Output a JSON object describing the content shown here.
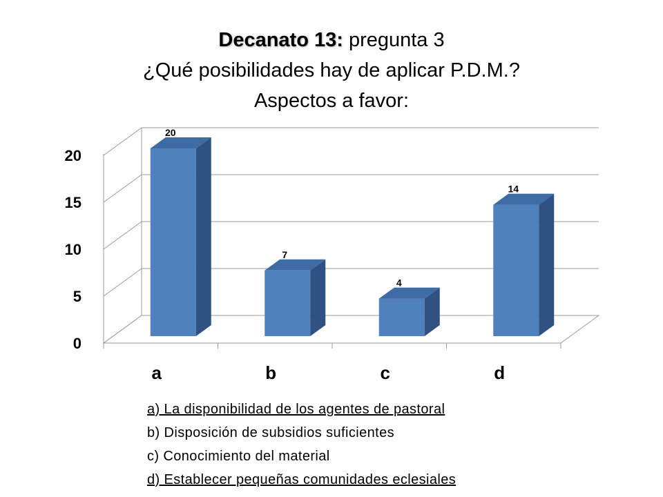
{
  "title": {
    "bold": "Decanato 13:",
    "rest": " pregunta 3",
    "line2": "¿Qué posibilidades hay de aplicar P.D.M.?",
    "line3": "Aspectos a favor:"
  },
  "chart_data": {
    "type": "bar",
    "style": "3d-column",
    "categories": [
      "a",
      "b",
      "c",
      "d"
    ],
    "values": [
      20,
      7,
      4,
      14
    ],
    "ylim": [
      0,
      20
    ],
    "yticks": [
      0,
      5,
      10,
      15,
      20
    ],
    "grid": true,
    "data_labels": true,
    "colors": {
      "front": "#4F81BD",
      "top": "#3E6BA3",
      "side": "#2F5282",
      "grid": "#9a9a9a"
    }
  },
  "legend": [
    {
      "text": "a) La disponibilidad de los agentes de pastoral",
      "underlined": true
    },
    {
      "text": "b) Disposición de subsidios suficientes",
      "underlined": false
    },
    {
      "text": "c) Conocimiento del material",
      "underlined": false
    },
    {
      "text": "d) Establecer pequeñas comunidades eclesiales",
      "underlined": true
    }
  ]
}
